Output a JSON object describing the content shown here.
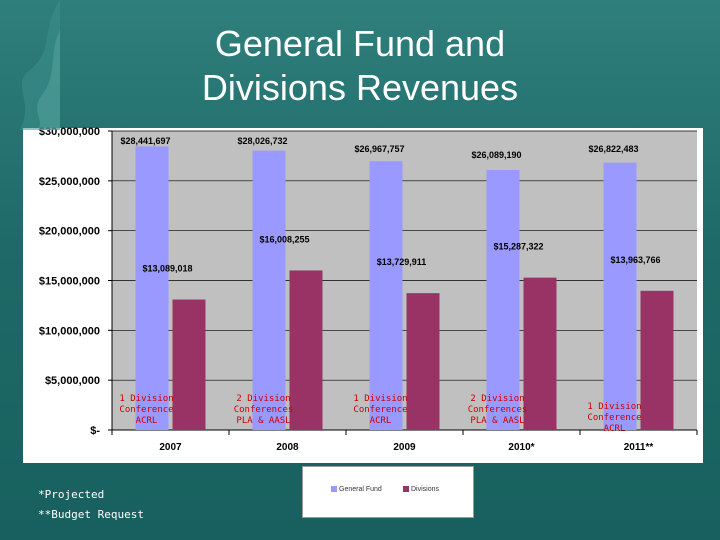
{
  "slide": {
    "title_line1": "General Fund and",
    "title_line2": "Divisions Revenues",
    "notes": [
      "*Projected",
      "**Budget Request"
    ]
  },
  "colors": {
    "general_fund": "#9999ff",
    "divisions": "#993366",
    "plot_bg": "#c0c0c0",
    "annotation": "#cc0000"
  },
  "legend": {
    "general_fund": "General Fund",
    "divisions": "Divisions"
  },
  "chart_data": {
    "type": "bar",
    "categories": [
      "2007",
      "2008",
      "2009",
      "2010*",
      "2011**"
    ],
    "series": [
      {
        "name": "General Fund",
        "values": [
          28441697,
          28026732,
          26967757,
          26089190,
          26822483
        ]
      },
      {
        "name": "Divisions",
        "values": [
          13089018,
          16008255,
          13729911,
          15287322,
          13963766
        ]
      }
    ],
    "value_labels": [
      [
        "$28,441,697",
        "$28,026,732",
        "$26,967,757",
        "$26,089,190",
        "$26,822,483"
      ],
      [
        "$13,089,018",
        "$16,008,255",
        "$13,729,911",
        "$15,287,322",
        "$13,963,766"
      ]
    ],
    "y_ticks": [
      "$-",
      "$5,000,000",
      "$10,000,000",
      "$15,000,000",
      "$20,000,000",
      "$25,000,000",
      "$30,000,000"
    ],
    "ylim": [
      0,
      30000000
    ],
    "annotations": [
      [
        "1 Division",
        "Conference",
        "ACRL"
      ],
      [
        "2 Division",
        "Conferences",
        "PLA & AASL"
      ],
      [
        "1 Division",
        "Conference",
        "ACRL"
      ],
      [
        "2 Division",
        "Conferences",
        "PLA & AASL"
      ],
      [
        "1 Division",
        "Conference",
        "ACRL"
      ]
    ],
    "grid": true,
    "legend_position": "bottom"
  }
}
